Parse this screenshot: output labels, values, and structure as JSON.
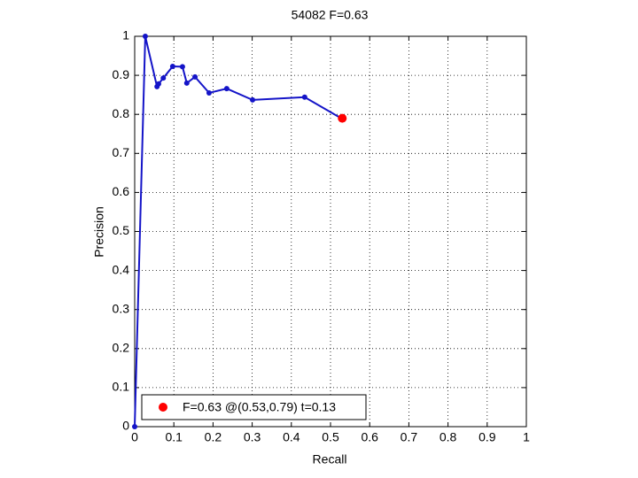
{
  "chart_data": {
    "type": "line",
    "title": "54082 F=0.63",
    "x_label": "Recall",
    "y_label": "Precision",
    "series": [
      {
        "color": "#1414c8",
        "x": [
          0,
          0.027,
          0.057,
          0.061,
          0.073,
          0.097,
          0.122,
          0.133,
          0.154,
          0.19,
          0.235,
          0.301,
          0.434,
          0.529
        ],
        "values": [
          0,
          1.0,
          0.871,
          0.878,
          0.893,
          0.923,
          0.922,
          0.88,
          0.896,
          0.855,
          0.866,
          0.837,
          0.844,
          0.789
        ]
      },
      {
        "name": "F=0.63 @(0.53,0.79) t=0.13",
        "color": "#ff0000",
        "x": [
          0.53
        ],
        "values": [
          0.79
        ]
      }
    ],
    "xlim": [
      0,
      1
    ],
    "ylim": [
      0,
      1
    ],
    "xticks": [
      0,
      0.1,
      0.2,
      0.3,
      0.4,
      0.5,
      0.6,
      0.7,
      0.8,
      0.9,
      1
    ],
    "yticks": [
      0,
      0.1,
      0.2,
      0.3,
      0.4,
      0.5,
      0.6,
      0.7,
      0.8,
      0.9,
      1
    ],
    "grid": true,
    "legend": "lower left"
  }
}
